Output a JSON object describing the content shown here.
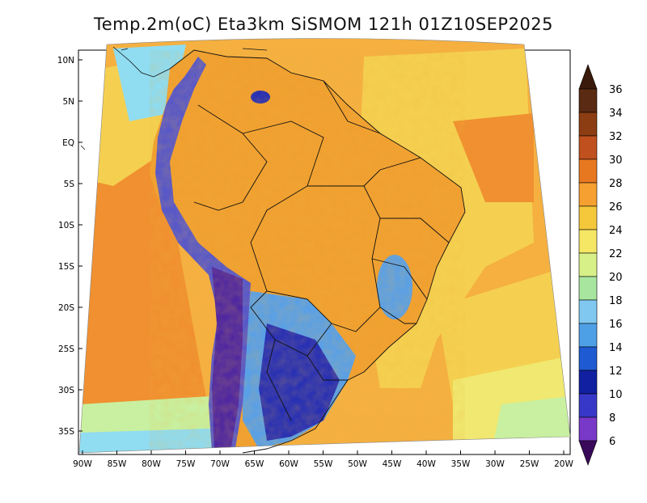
{
  "title": "Temp.2m(oC) Eta3km SiSMOM 121h 01Z10SEP2025",
  "lat_labels": [
    "10N",
    "5N",
    "EQ",
    "5S",
    "10S",
    "15S",
    "20S",
    "25S",
    "30S",
    "35S"
  ],
  "lon_labels": [
    "90W",
    "85W",
    "80W",
    "75W",
    "70W",
    "65W",
    "60W",
    "55W",
    "50W",
    "45W",
    "40W",
    "35W",
    "30W",
    "25W",
    "20W"
  ],
  "colorbar": {
    "ticks": [
      "36",
      "34",
      "32",
      "30",
      "28",
      "26",
      "24",
      "22",
      "20",
      "18",
      "16",
      "14",
      "12",
      "10",
      "8",
      "6"
    ],
    "colors": [
      "#5a2a12",
      "#8c3d12",
      "#c0501e",
      "#e87820",
      "#f5a030",
      "#f5c83c",
      "#f5e664",
      "#d8f088",
      "#a8e6a0",
      "#80c8f0",
      "#4ea0e6",
      "#1e5ad2",
      "#1020a0",
      "#3838c8",
      "#7838c8",
      "#501478"
    ],
    "min_arrow_color": "#3a0a5a",
    "max_arrow_color": "#3a1a0a"
  },
  "map_colors": {
    "ocean_warm": "#f5b040",
    "ocean_hot": "#f09030",
    "ocean_mild": "#f5d050",
    "ocean_cool": "#f0e870",
    "ocean_cold": "#c8f0a0",
    "ocean_coldest": "#90dcf0",
    "land_hot": "#f0a030",
    "andes": "#5858c8",
    "andes_high": "#5028a0",
    "south_cold": "#2830b4",
    "south_cool": "#5aa0e6"
  }
}
